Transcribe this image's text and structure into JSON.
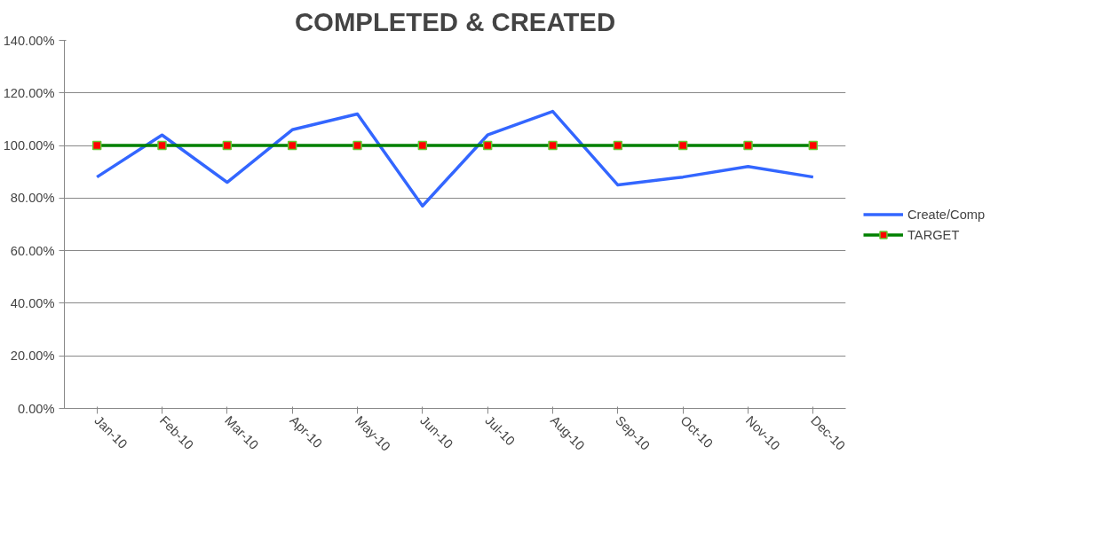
{
  "chart_data": {
    "type": "line",
    "title": "COMPLETED & CREATED",
    "categories": [
      "Jan-10",
      "Feb-10",
      "Mar-10",
      "Apr-10",
      "May-10",
      "Jun-10",
      "Jul-10",
      "Aug-10",
      "Sep-10",
      "Oct-10",
      "Nov-10",
      "Dec-10"
    ],
    "series": [
      {
        "name": "Create/Comp",
        "color": "#3366ff",
        "marker": "none",
        "values": [
          88,
          104,
          86,
          106,
          112,
          77,
          104,
          113,
          85,
          88,
          92,
          88
        ]
      },
      {
        "name": "TARGET",
        "color": "#008000",
        "marker": "square",
        "colors": [
          "#ff0000",
          "#ff0000",
          "#ff0000",
          "#ff0000",
          "#ff0000",
          "#ff0000",
          "#ff0000",
          "#ff0000",
          "#ff0000",
          "#ff0000",
          "#ff0000",
          "#ff0000"
        ],
        "values": [
          100,
          100,
          100,
          100,
          100,
          100,
          100,
          100,
          100,
          100,
          100,
          100
        ]
      }
    ],
    "ylim": [
      0,
      140
    ],
    "yticks": [
      {
        "value": 0,
        "label": "0.00%"
      },
      {
        "value": 20,
        "label": "20.00%"
      },
      {
        "value": 40,
        "label": "40.00%"
      },
      {
        "value": 60,
        "label": "60.00%"
      },
      {
        "value": 80,
        "label": "80.00%"
      },
      {
        "value": 100,
        "label": "100.00%"
      },
      {
        "value": 120,
        "label": "120.00%"
      },
      {
        "value": 140,
        "label": "140.00%"
      }
    ],
    "grid": "y",
    "legend": "right",
    "line_style": "solid"
  }
}
